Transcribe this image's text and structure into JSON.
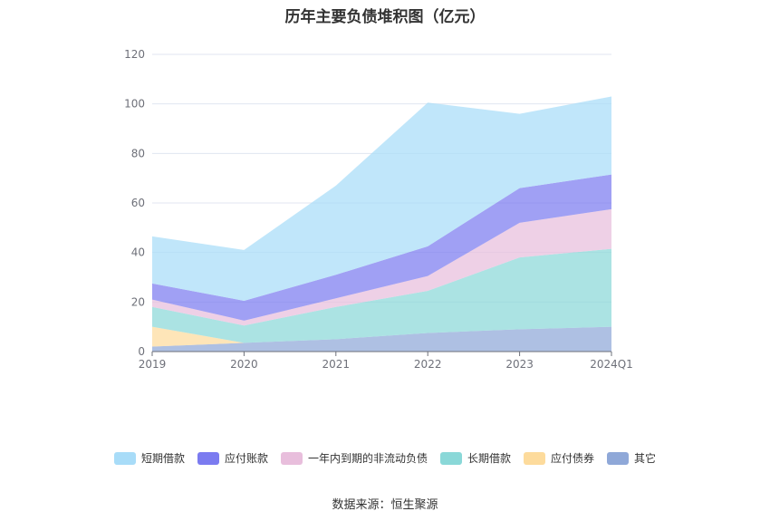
{
  "chart_data": {
    "type": "area",
    "stacked": true,
    "title": "历年主要负债堆积图（亿元）",
    "categories": [
      "2019",
      "2020",
      "2021",
      "2022",
      "2023",
      "2024Q1"
    ],
    "ylim": [
      0,
      120
    ],
    "yticks": [
      0,
      20,
      40,
      60,
      80,
      100,
      120
    ],
    "grid": true,
    "legend_position": "bottom",
    "series": [
      {
        "name": "其它",
        "color": "#8fa8d8",
        "values": [
          2,
          3.5,
          5,
          7.5,
          9,
          10
        ]
      },
      {
        "name": "应付债券",
        "color": "#fddb9c",
        "values": [
          8,
          0,
          0,
          0,
          0,
          0
        ]
      },
      {
        "name": "长期借款",
        "color": "#8ad8d8",
        "values": [
          8,
          7,
          13,
          17,
          29,
          31.5
        ]
      },
      {
        "name": "一年内到期的非流动负债",
        "color": "#e8bedc",
        "values": [
          3,
          2,
          3.5,
          6,
          14,
          16
        ]
      },
      {
        "name": "应付账款",
        "color": "#7b7bf0",
        "values": [
          6.5,
          8,
          9.5,
          12,
          14,
          14
        ]
      },
      {
        "name": "短期借款",
        "color": "#a8dcf8",
        "values": [
          19,
          20.5,
          36,
          58,
          30,
          31.5
        ]
      }
    ]
  },
  "legend_order": [
    "短期借款",
    "应付账款",
    "一年内到期的非流动负债",
    "长期借款",
    "应付债券",
    "其它"
  ],
  "source": "数据来源：恒生聚源"
}
